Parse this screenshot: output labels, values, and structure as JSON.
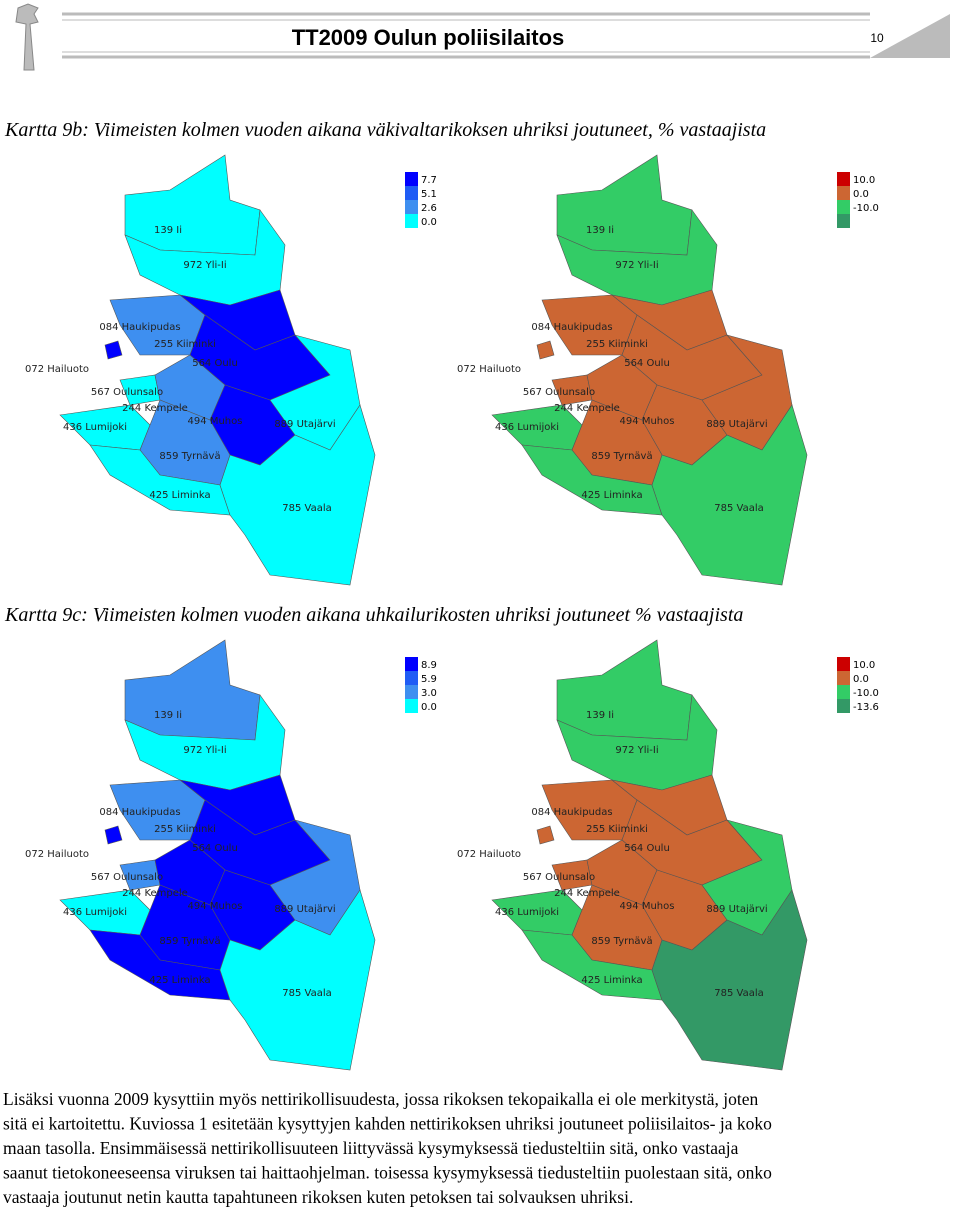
{
  "header": {
    "title": "TT2009 Oulun poliisilaitos",
    "page": "10"
  },
  "regions": [
    "139 Ii",
    "972 Yli-Ii",
    "084 Haukipudas",
    "255 Kiiminki",
    "564 Oulu",
    "072 Hailuoto",
    "567 Oulunsalo",
    "436 Lumijoki",
    "244 Kempele",
    "494 Muhos",
    "889 Utajärvi",
    "859 Tyrnävä",
    "425 Liminka",
    "785 Vaala"
  ],
  "sections": [
    {
      "caption": "Kartta 9b: Viimeisten kolmen vuoden aikana väkivaltarikoksen uhriksi joutuneet, % vastaajista",
      "maps": [
        {
          "legend": [
            {
              "label": "7.7",
              "color": "#0000ff"
            },
            {
              "label": "5.1",
              "color": "#1f5cf5"
            },
            {
              "label": "2.6",
              "color": "#3e8ff0"
            },
            {
              "label": "0.0",
              "color": "#00ffff"
            }
          ],
          "region_colors": [
            "#00ffff",
            "#00ffff",
            "#3e8ff0",
            "#0000ff",
            "#0000ff",
            "#0000ff",
            "#00ffff",
            "#00ffff",
            "#3e8ff0",
            "#0000ff",
            "#00ffff",
            "#3e8ff0",
            "#00ffff",
            "#00ffff"
          ]
        },
        {
          "legend": [
            {
              "label": "10.0",
              "color": "#cc0000"
            },
            {
              "label": "0.0",
              "color": "#cc6633"
            },
            {
              "label": "-10.0",
              "color": "#33cc66"
            },
            {
              "label": "",
              "color": "#339966"
            }
          ],
          "region_colors": [
            "#33cc66",
            "#33cc66",
            "#cc6633",
            "#cc6633",
            "#cc6633",
            "#cc6633",
            "#cc6633",
            "#33cc66",
            "#cc6633",
            "#cc6633",
            "#cc6633",
            "#cc6633",
            "#33cc66",
            "#33cc66"
          ]
        }
      ]
    },
    {
      "caption": "Kartta 9c: Viimeisten kolmen vuoden aikana uhkailurikosten uhriksi joutuneet % vastaajista",
      "maps": [
        {
          "legend": [
            {
              "label": "8.9",
              "color": "#0000ff"
            },
            {
              "label": "5.9",
              "color": "#1f5cf5"
            },
            {
              "label": "3.0",
              "color": "#3e8ff0"
            },
            {
              "label": "0.0",
              "color": "#00ffff"
            }
          ],
          "region_colors": [
            "#3e8ff0",
            "#00ffff",
            "#3e8ff0",
            "#0000ff",
            "#0000ff",
            "#0000ff",
            "#3e8ff0",
            "#00ffff",
            "#0000ff",
            "#0000ff",
            "#3e8ff0",
            "#0000ff",
            "#0000ff",
            "#00ffff"
          ]
        },
        {
          "legend": [
            {
              "label": "10.0",
              "color": "#cc0000"
            },
            {
              "label": "0.0",
              "color": "#cc6633"
            },
            {
              "label": "-10.0",
              "color": "#33cc66"
            },
            {
              "label": "-13.6",
              "color": "#339966"
            }
          ],
          "region_colors": [
            "#33cc66",
            "#33cc66",
            "#cc6633",
            "#cc6633",
            "#cc6633",
            "#cc6633",
            "#cc6633",
            "#33cc66",
            "#cc6633",
            "#cc6633",
            "#33cc66",
            "#cc6633",
            "#33cc66",
            "#339966"
          ]
        }
      ]
    }
  ],
  "paragraph": [
    "Lisäksi vuonna 2009 kysyttiin myös nettirikollisuudesta, jossa rikoksen tekopaikalla ei ole merkitystä, joten",
    "sitä ei kartoitettu. Kuviossa 1 esitetään kysyttyjen kahden nettirikoksen uhriksi joutuneet poliisilaitos- ja koko",
    "maan tasolla. Ensimmäisessä nettirikollisuuteen liittyvässä kysymyksessä tiedusteltiin sitä, onko vastaaja",
    "saanut tietokoneeseensa viruksen tai haittaohjelman. toisessa kysymyksessä tiedusteltiin puolestaan sitä, onko",
    "vastaaja joutunut netin kautta tapahtuneen rikoksen kuten petoksen tai solvauksen uhriksi."
  ]
}
